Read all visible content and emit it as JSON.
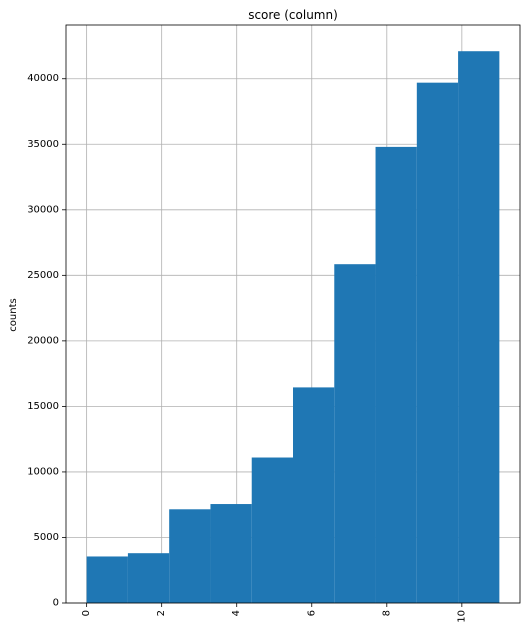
{
  "chart_data": {
    "type": "bar",
    "title": "score (column)",
    "xlabel": "",
    "ylabel": "counts",
    "xlim": [
      -0.55,
      11.55
    ],
    "ylim": [
      0,
      44100
    ],
    "grid": true,
    "bar_color": "#1f77b4",
    "x_ticks": [
      0,
      2,
      4,
      6,
      8,
      10
    ],
    "x_tick_labels": [
      "0",
      "2",
      "4",
      "6",
      "8",
      "10"
    ],
    "y_ticks": [
      0,
      5000,
      10000,
      15000,
      20000,
      25000,
      30000,
      35000,
      40000
    ],
    "y_tick_labels": [
      "0",
      "5000",
      "10000",
      "15000",
      "20000",
      "25000",
      "30000",
      "35000",
      "40000"
    ],
    "bin_edges": [
      0,
      1.1,
      2.2,
      3.3,
      4.4,
      5.5,
      6.6,
      7.7,
      8.8,
      9.9,
      11
    ],
    "values": [
      3550,
      3800,
      7150,
      7550,
      11100,
      16450,
      25850,
      34800,
      39700,
      42100
    ]
  }
}
